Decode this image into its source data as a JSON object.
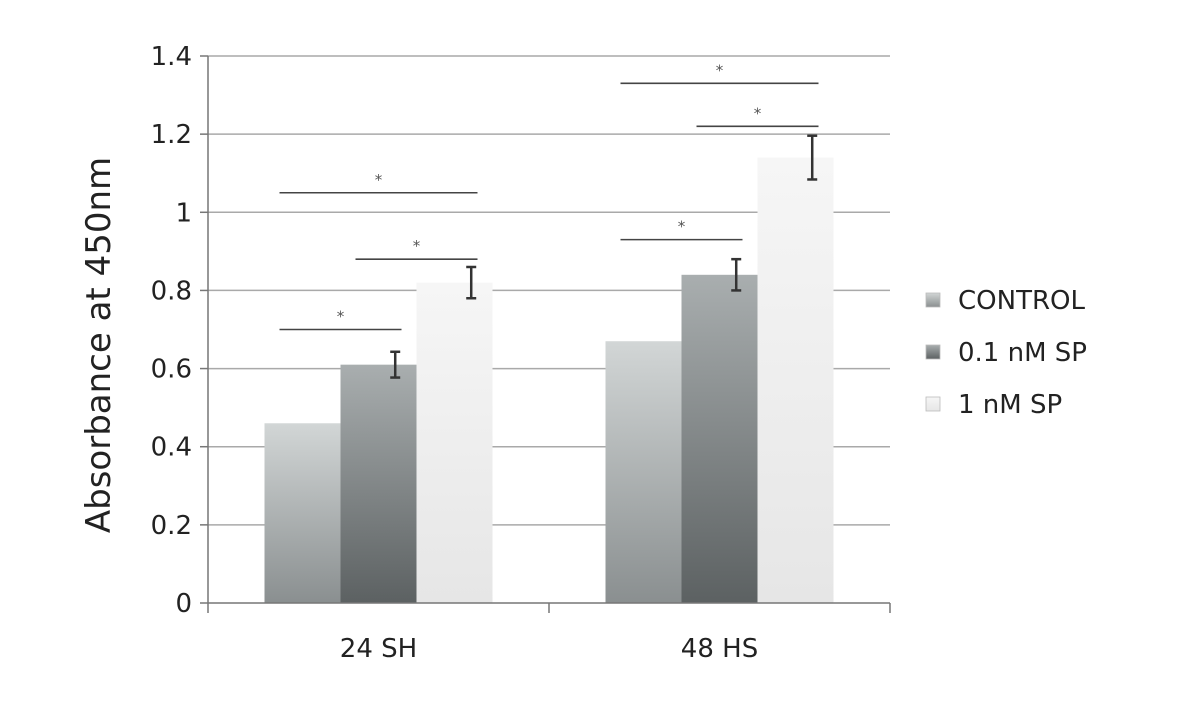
{
  "chart_data": {
    "type": "bar",
    "title": "",
    "xlabel": "",
    "ylabel": "Absorbance at 450nm",
    "ylim": [
      0,
      1.4
    ],
    "yticks": [
      {
        "value": 0,
        "label": "0"
      },
      {
        "value": 0.2,
        "label": "0.2"
      },
      {
        "value": 0.4,
        "label": "0.4"
      },
      {
        "value": 0.6,
        "label": "0.6"
      },
      {
        "value": 0.8,
        "label": "0.8"
      },
      {
        "value": 1.0,
        "label": "1"
      },
      {
        "value": 1.2,
        "label": "1.2"
      },
      {
        "value": 1.4,
        "label": "1.4"
      }
    ],
    "grid": true,
    "legend_position": "right",
    "categories": [
      "24 SH",
      "48 HS"
    ],
    "series": [
      {
        "name": "CONTROL",
        "values": [
          0.46,
          0.67
        ],
        "errors": [
          null,
          null
        ],
        "color_top": "#d2d6d6",
        "color_bottom": "#8a8f90"
      },
      {
        "name": "0.1 nM SP",
        "values": [
          0.61,
          0.84
        ],
        "errors": [
          0.033,
          0.04
        ],
        "color_top": "#a9aeaf",
        "color_bottom": "#5c6162"
      },
      {
        "name": "1 nM SP",
        "values": [
          0.82,
          1.14
        ],
        "errors": [
          0.04,
          0.056
        ],
        "color_top": "#f6f6f6",
        "color_bottom": "#e6e6e6"
      }
    ],
    "significance": [
      {
        "category": 0,
        "from_series": 0,
        "to_series": 1,
        "y": 0.7,
        "label": "*"
      },
      {
        "category": 0,
        "from_series": 1,
        "to_series": 2,
        "y": 0.88,
        "label": "*"
      },
      {
        "category": 0,
        "from_series": 0,
        "to_series": 2,
        "y": 1.05,
        "label": "*"
      },
      {
        "category": 1,
        "from_series": 0,
        "to_series": 1,
        "y": 0.93,
        "label": "*"
      },
      {
        "category": 1,
        "from_series": 1,
        "to_series": 2,
        "y": 1.22,
        "label": "*"
      },
      {
        "category": 1,
        "from_series": 0,
        "to_series": 2,
        "y": 1.33,
        "label": "*"
      }
    ]
  }
}
